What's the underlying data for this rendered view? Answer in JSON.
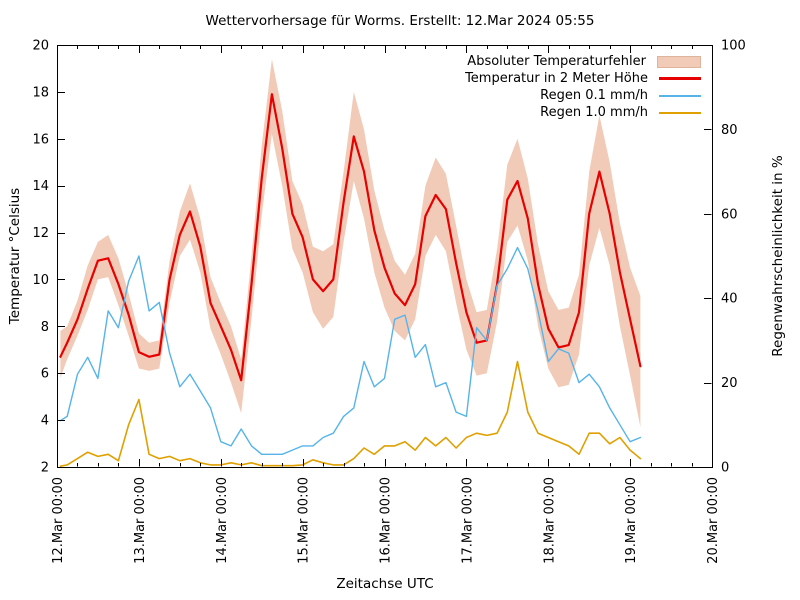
{
  "legend": [
    {
      "label": "Absoluter Temperaturfehler",
      "type": "band",
      "color": "#f2cbb8",
      "border_color": "#dfb49c"
    },
    {
      "label": "Temperatur in 2 Meter Höhe",
      "type": "line",
      "color": "#e60000",
      "thickness": 3
    },
    {
      "label": "Regen 0.1 mm/h",
      "type": "line",
      "color": "#56b4e9",
      "thickness": 2
    },
    {
      "label": "Regen 1.0 mm/h",
      "type": "line",
      "color": "#dfa000",
      "thickness": 2
    }
  ],
  "chart_data": {
    "type": "line",
    "title": "Wettervorhersage für Worms. Erstellt: 12.Mar 2024 05:55",
    "x_axis": {
      "label": "Zeitachse UTC",
      "tick_labels": [
        "12.Mar 00:00",
        "13.Mar 00:00",
        "14.Mar 00:00",
        "15.Mar 00:00",
        "16.Mar 00:00",
        "17.Mar 00:00",
        "18.Mar 00:00",
        "19.Mar 00:00",
        "20.Mar 00:00"
      ],
      "range_hours": 192,
      "minor_tick_hours": 6
    },
    "y_left": {
      "label": "Temperatur °Celsius",
      "min": 2,
      "max": 20,
      "ticks": [
        2,
        4,
        6,
        8,
        10,
        12,
        14,
        16,
        18,
        20
      ]
    },
    "y_right": {
      "label": "Regenwahrscheinlichkeit in %",
      "min": 0,
      "max": 100,
      "ticks": [
        0,
        20,
        40,
        60,
        80,
        100
      ]
    },
    "grid": false,
    "legend_position": "top-right-inside",
    "hours": [
      1,
      3,
      6,
      9,
      12,
      15,
      18,
      21,
      24,
      27,
      30,
      33,
      36,
      39,
      42,
      45,
      48,
      51,
      54,
      57,
      60,
      63,
      66,
      69,
      72,
      75,
      78,
      81,
      84,
      87,
      90,
      93,
      96,
      99,
      102,
      105,
      108,
      111,
      114,
      117,
      120,
      123,
      126,
      129,
      132,
      135,
      138,
      141,
      144,
      147,
      150,
      153,
      156,
      159,
      162,
      165,
      168,
      171
    ],
    "series": [
      {
        "name": "Absoluter Temperaturfehler",
        "axis": "left",
        "type": "band",
        "color": "#f2cbb8",
        "upper": [
          7.8,
          8.0,
          9.1,
          10.6,
          11.6,
          11.9,
          10.9,
          9.4,
          7.7,
          7.3,
          7.4,
          10.8,
          12.9,
          14.1,
          12.6,
          10.1,
          9.0,
          8.0,
          6.6,
          11.0,
          15.7,
          19.4,
          17.2,
          14.2,
          13.2,
          11.4,
          11.2,
          11.5,
          14.6,
          18.0,
          16.4,
          13.8,
          12.1,
          10.8,
          10.2,
          11.1,
          14.0,
          15.2,
          14.5,
          12.3,
          10.0,
          8.6,
          8.7,
          11.3,
          14.9,
          16.0,
          14.3,
          11.5,
          9.5,
          8.7,
          8.8,
          10.2,
          14.6,
          17.0,
          15.0,
          12.4,
          10.5,
          9.3
        ],
        "lower": [
          5.8,
          6.6,
          7.6,
          8.7,
          10.0,
          10.1,
          8.9,
          7.6,
          6.2,
          6.1,
          6.2,
          9.0,
          11.0,
          11.7,
          10.3,
          7.9,
          6.8,
          5.6,
          4.3,
          8.3,
          12.7,
          16.2,
          14.0,
          11.3,
          10.3,
          8.6,
          7.9,
          8.4,
          11.6,
          14.2,
          12.6,
          10.3,
          8.8,
          7.8,
          7.4,
          8.3,
          11.0,
          11.9,
          11.2,
          9.0,
          7.0,
          5.9,
          6.0,
          8.2,
          11.6,
          12.3,
          10.8,
          8.0,
          6.2,
          5.4,
          5.5,
          6.8,
          10.6,
          12.2,
          10.6,
          8.0,
          5.9,
          3.7
        ]
      },
      {
        "name": "Temperatur in 2 Meter Höhe",
        "axis": "left",
        "type": "line",
        "color": "#e60000",
        "values": [
          6.7,
          7.3,
          8.3,
          9.6,
          10.8,
          10.9,
          9.8,
          8.5,
          6.9,
          6.7,
          6.8,
          10.0,
          11.9,
          12.9,
          11.4,
          9.0,
          8.0,
          7.0,
          5.7,
          9.8,
          14.3,
          17.9,
          15.6,
          12.8,
          11.8,
          10.0,
          9.5,
          10.0,
          13.3,
          16.1,
          14.6,
          12.1,
          10.5,
          9.4,
          8.9,
          9.8,
          12.7,
          13.6,
          13.0,
          10.7,
          8.6,
          7.3,
          7.4,
          9.8,
          13.4,
          14.2,
          12.6,
          9.8,
          7.9,
          7.1,
          7.2,
          8.6,
          12.8,
          14.6,
          12.8,
          10.3,
          8.3,
          6.3
        ]
      },
      {
        "name": "Regen 0.1 mm/h",
        "axis": "right",
        "type": "line",
        "color": "#56b4e9",
        "values": [
          11,
          12,
          22,
          26,
          21,
          37,
          33,
          44,
          50,
          37,
          39,
          27,
          19,
          22,
          18,
          14,
          6,
          5,
          9,
          5,
          3,
          3,
          3,
          4,
          5,
          5,
          7,
          8,
          12,
          14,
          25,
          19,
          21,
          35,
          36,
          26,
          29,
          19,
          20,
          13,
          12,
          33,
          30,
          43,
          47,
          52,
          47,
          37,
          25,
          28,
          27,
          20,
          22,
          19,
          14,
          10,
          6,
          7
        ]
      },
      {
        "name": "Regen 1.0 mm/h",
        "axis": "right",
        "type": "line",
        "color": "#dfa000",
        "values": [
          0.2,
          0.5,
          2,
          3.5,
          2.5,
          3,
          1.5,
          10,
          16,
          3,
          2,
          2.5,
          1.5,
          2,
          1,
          0.5,
          0.5,
          1,
          0.5,
          1,
          0.3,
          0.3,
          0.3,
          0.3,
          0.5,
          1.7,
          1,
          0.5,
          0.5,
          2,
          4.5,
          3,
          5,
          5,
          6,
          4,
          7,
          5,
          7,
          4.5,
          7,
          8,
          7.5,
          8,
          13,
          25,
          13,
          8,
          7,
          6,
          5,
          3,
          8,
          8,
          5.5,
          7,
          4,
          2
        ]
      }
    ]
  }
}
